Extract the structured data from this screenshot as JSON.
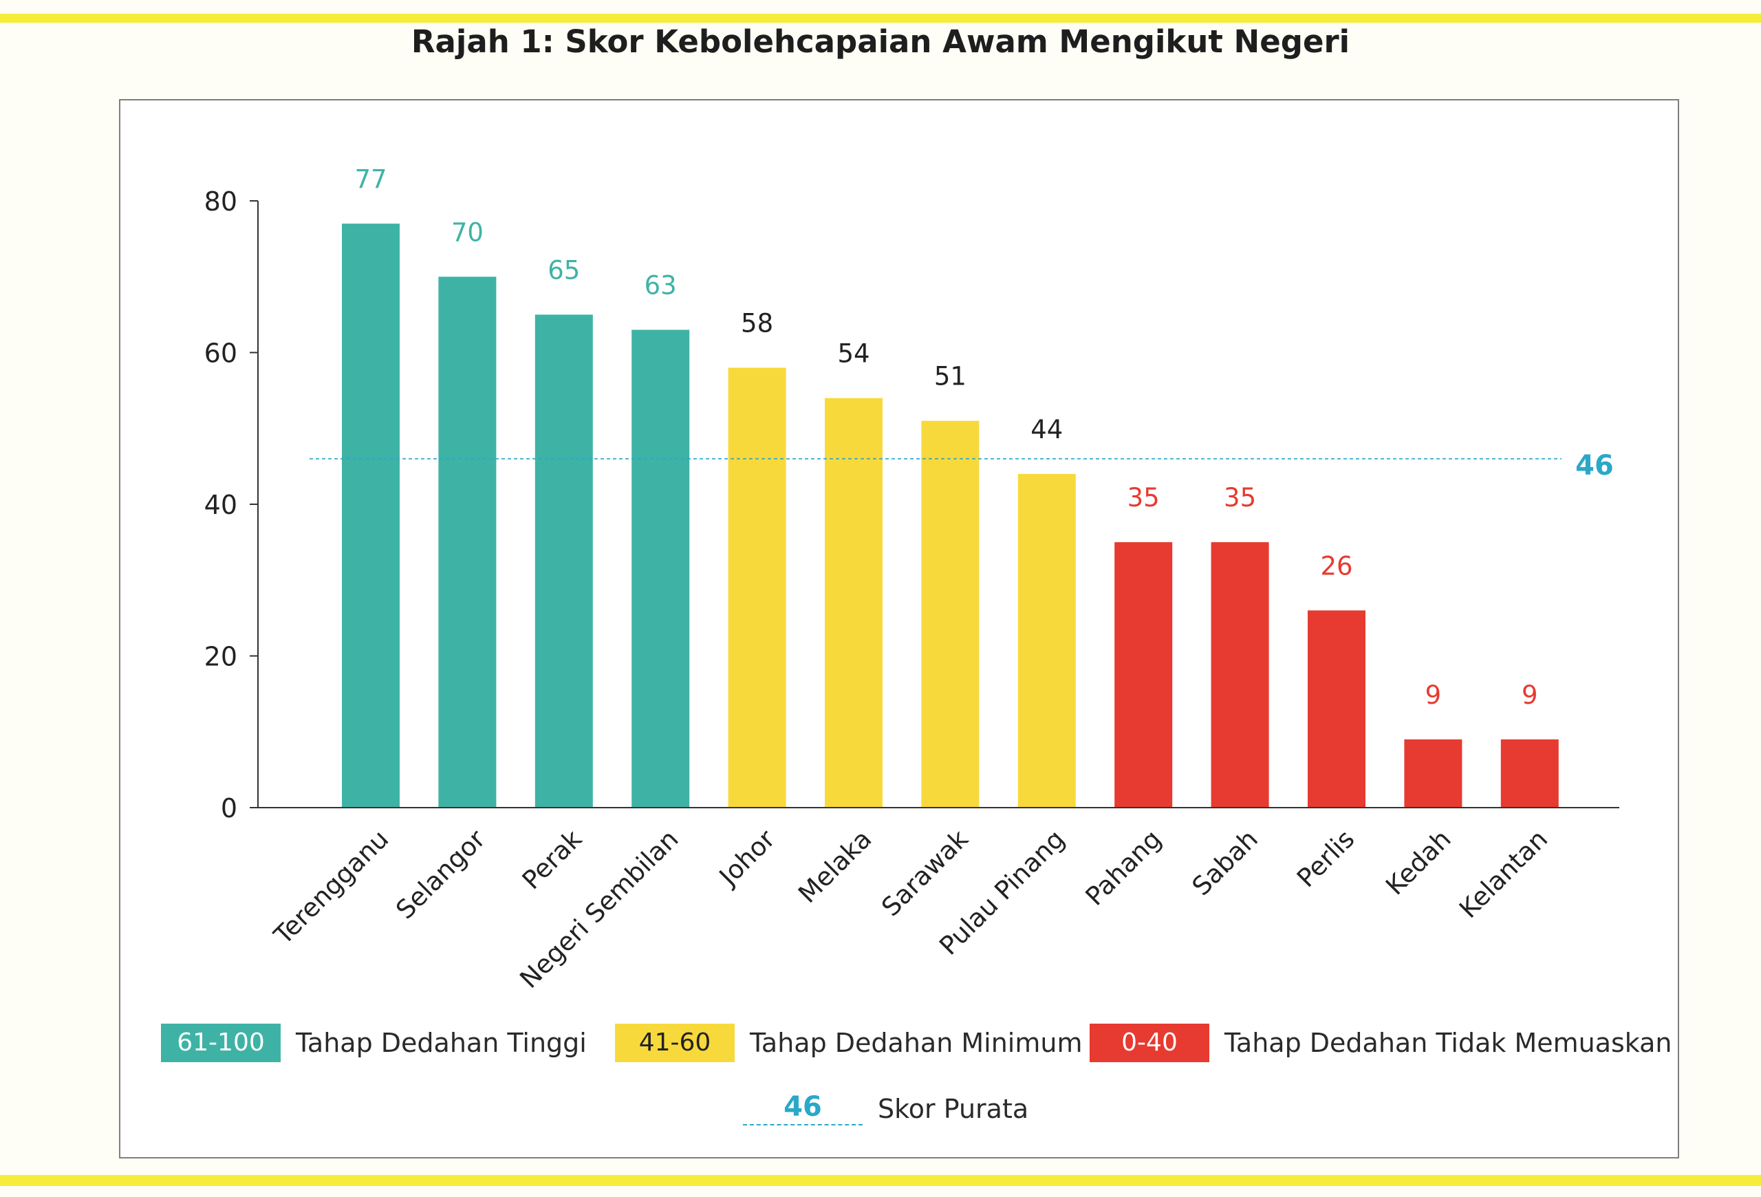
{
  "title": "Rajah 1: Skor Kebolehcapaian Awam Mengikut Negeri",
  "chart_data": {
    "type": "bar",
    "title": "Rajah 1: Skor Kebolehcapaian Awam Mengikut Negeri",
    "categories": [
      "Terengganu",
      "Selangor",
      "Perak",
      "Negeri Sembilan",
      "Johor",
      "Melaka",
      "Sarawak",
      "Pulau Pinang",
      "Pahang",
      "Sabah",
      "Perlis",
      "Kedah",
      "Kelantan"
    ],
    "values": [
      77,
      70,
      65,
      63,
      58,
      54,
      51,
      44,
      35,
      35,
      26,
      9,
      9
    ],
    "ylim": [
      0,
      80
    ],
    "yticks": [
      0,
      20,
      40,
      60,
      80
    ],
    "average": 46,
    "xlabel": "",
    "ylabel": "",
    "grid": false,
    "legend_position": "bottom",
    "colors": {
      "high": "#3eb3a5",
      "minimum": "#f8d93c",
      "low": "#e73a30",
      "average": "#2aa8c8",
      "label_minimum": "#222222"
    },
    "bands": [
      {
        "range": "61-100",
        "label": "Tahap Dedahan Tinggi",
        "min": 61,
        "color": "#3eb3a5"
      },
      {
        "range": "41-60",
        "label": "Tahap Dedahan Minimum",
        "min": 41,
        "color": "#f8d93c"
      },
      {
        "range": "0-40",
        "label": "Tahap Dedahan Tidak Memuaskan",
        "min": 0,
        "color": "#e73a30"
      }
    ],
    "average_legend": {
      "value": "46",
      "label": "Skor Purata"
    }
  }
}
